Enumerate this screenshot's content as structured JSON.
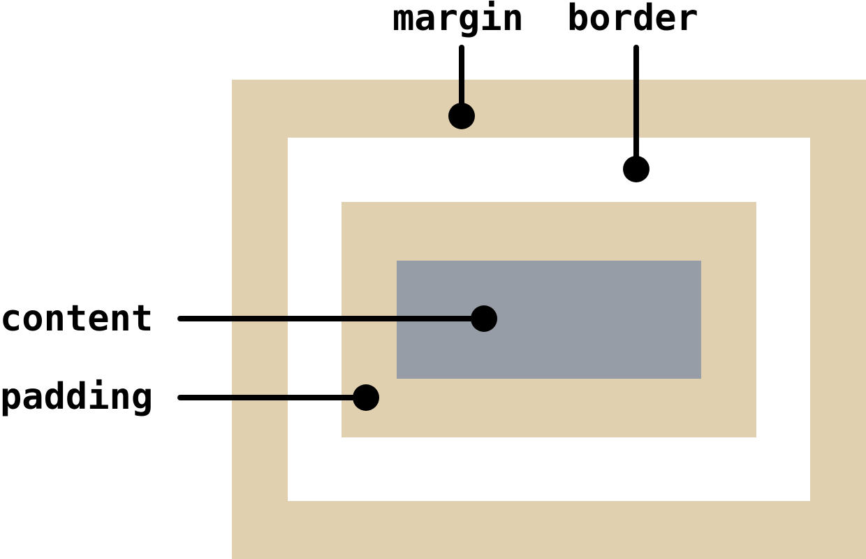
{
  "labels": {
    "margin": "margin",
    "border": "border",
    "content": "content",
    "padding": "padding"
  },
  "colors": {
    "outer_band": "#E1D0B0",
    "inner_gap": "#FFFFFF",
    "padding_box": "#E1D0B0",
    "content_box": "#979DA6",
    "leader_line": "#000000",
    "text": "#000000"
  }
}
